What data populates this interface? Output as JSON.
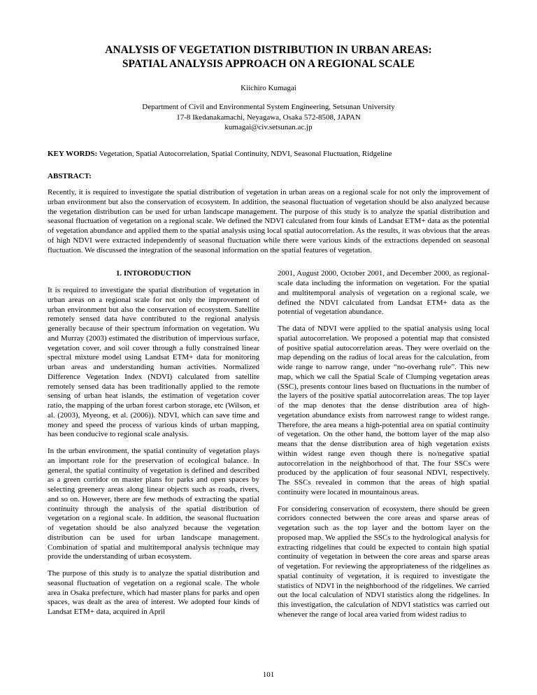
{
  "title_line1": "ANALYSIS OF VEGETATION DISTRIBUTION IN URBAN AREAS:",
  "title_line2": "SPATIAL ANALYSIS APPROACH ON A REGIONAL SCALE",
  "author": "Kiichiro Kumagai",
  "affiliation_line1": "Department of Civil and Environmental System Engineering, Setsunan University",
  "affiliation_line2": "17-8 Ikedanakamachi, Neyagawa, Osaka 572-8508, JAPAN",
  "affiliation_line3": "kumagai@civ.setsunan.ac.jp",
  "keywords_label": "KEY WORDS:",
  "keywords_text": "  Vegetation, Spatial Autocorrelation, Spatial Continuity, NDVI, Seasonal Fluctuation, Ridgeline",
  "abstract_label": "ABSTRACT:",
  "abstract_text": "Recently, it is required to investigate the spatial distribution of vegetation in urban areas on a regional scale for not only the improvement of urban environment but also the conservation of ecosystem. In addition, the seasonal fluctuation of vegetation should be also analyzed because the vegetation distribution can be used for urban landscape management. The purpose of this study is to analyze the spatial distribution and seasonal fluctuation of vegetation on a regional scale. We defined the NDVI calculated from four kinds of Landsat ETM+ data as the potential of vegetation abundance and applied them to the spatial analysis using local spatial autocorrelation. As the results, it was obvious that the areas of high NDVI were extracted independently of seasonal fluctuation while there were various kinds of the extractions depended on seasonal fluctuation. We discussed the integration of the seasonal information on the spatial features of vegetation.",
  "section1_heading": "1.    INTORODUCTION",
  "col1_p1": "It is required to investigate the spatial distribution of vegetation in urban areas on a regional scale for not only the improvement of urban environment but also the conservation of ecosystem. Satellite remotely sensed data have contributed to the regional analysis generally because of their spectrum information on vegetation. Wu and Murray (2003) estimated the distribution of impervious surface, vegetation cover, and soil cover through a fully constrained linear spectral mixture model using Landsat ETM+ data for monitoring urban areas and understanding human activities. Normalized Difference Vegetation Index (NDVI) calculated from satellite remotely sensed data has been traditionally applied to the remote sensing of urban heat islands, the estimation of vegetation cover ratio, the mapping of the urban forest carbon storage, etc (Wilson, et al. (2003), Myeong, et al. (2006)). NDVI, which can save time and money and speed the process of various kinds of urban mapping, has been conducive to regional scale analysis.",
  "col1_p2": "In the urban environment, the spatial continuity of vegetation plays an important role for the preservation of ecological balance. In general, the spatial continuity of vegetation is defined and described as a green corridor on master plans for parks and open spaces by selecting greenery areas along linear objects such as roads, rivers, and so on. However, there are few methods of extracting the spatial continuity through the analysis of the spatial distribution of vegetation on a regional scale. In addition, the seasonal fluctuation of vegetation should be also analyzed because the vegetation distribution can be used for urban landscape management. Combination of spatial and multitemporal analysis technique may provide the understanding of urban ecosystem.",
  "col1_p3": "The purpose of this study is to analyze the spatial distribution and seasonal fluctuation of vegetation on a regional scale. The whole area in Osaka prefecture, which had master plans for parks and open spaces, was dealt as the area of interest. We adopted four kinds of Landsat ETM+ data, acquired in April",
  "col2_p1": "2001, August 2000, October 2001, and December 2000, as regional-scale data including the information on vegetation. For the spatial and multitemporal analysis of vegetation on a regional scale, we defined the NDVI calculated from Landsat ETM+ data as the potential of vegetation abundance.",
  "col2_p2": "The data of NDVI were applied to the spatial analysis using local spatial autocorrelation. We proposed a potential map that consisted of positive spatial autocorrelation areas. They were overlaid on the map depending on the radius of local areas for the calculation, from wide range to narrow range, under “no-overhang rule”. This new map, which we call the Spatial Scale of Clumping vegetation areas (SSC), presents contour lines based on fluctuations in the number of the layers of the positive spatial autocorrelation areas. The top layer of the map denotes that the dense distribution area of high-vegetation abundance exists from narrowest range to widest range. Therefore, the area means a high-potential area on spatial continuity of vegetation. On the other hand, the bottom layer of the map also means that the dense distribution area of high vegetation exists within widest range even though there is no/negative spatial autocorrelation in the neighborhood of that. The four SSCs were produced by the application of four seasonal NDVI, respectively. The SSCs revealed in common that the areas of high spatial continuity were located in mountainous areas.",
  "col2_p3": "For considering conservation of ecosystem, there should be green corridors connected between the core areas and sparse areas of vegetation such as the top layer and the bottom layer on the proposed map. We applied the SSCs to the hydrological analysis for extracting ridgelines that could be expected to contain high spatial continuity of vegetation in between the core areas and sparse areas of vegetation. For reviewing the appropriateness of the ridgelines as spatial continuity of vegetation, it is required to investigate the statistics of NDVI in the neighborhood of the ridgelines. We carried out the local calculation of NDVI statistics along the ridgelines. In this investigation, the calculation of NDVI statistics was carried out whenever the range of local area varied from widest radius to",
  "page_number": "101"
}
